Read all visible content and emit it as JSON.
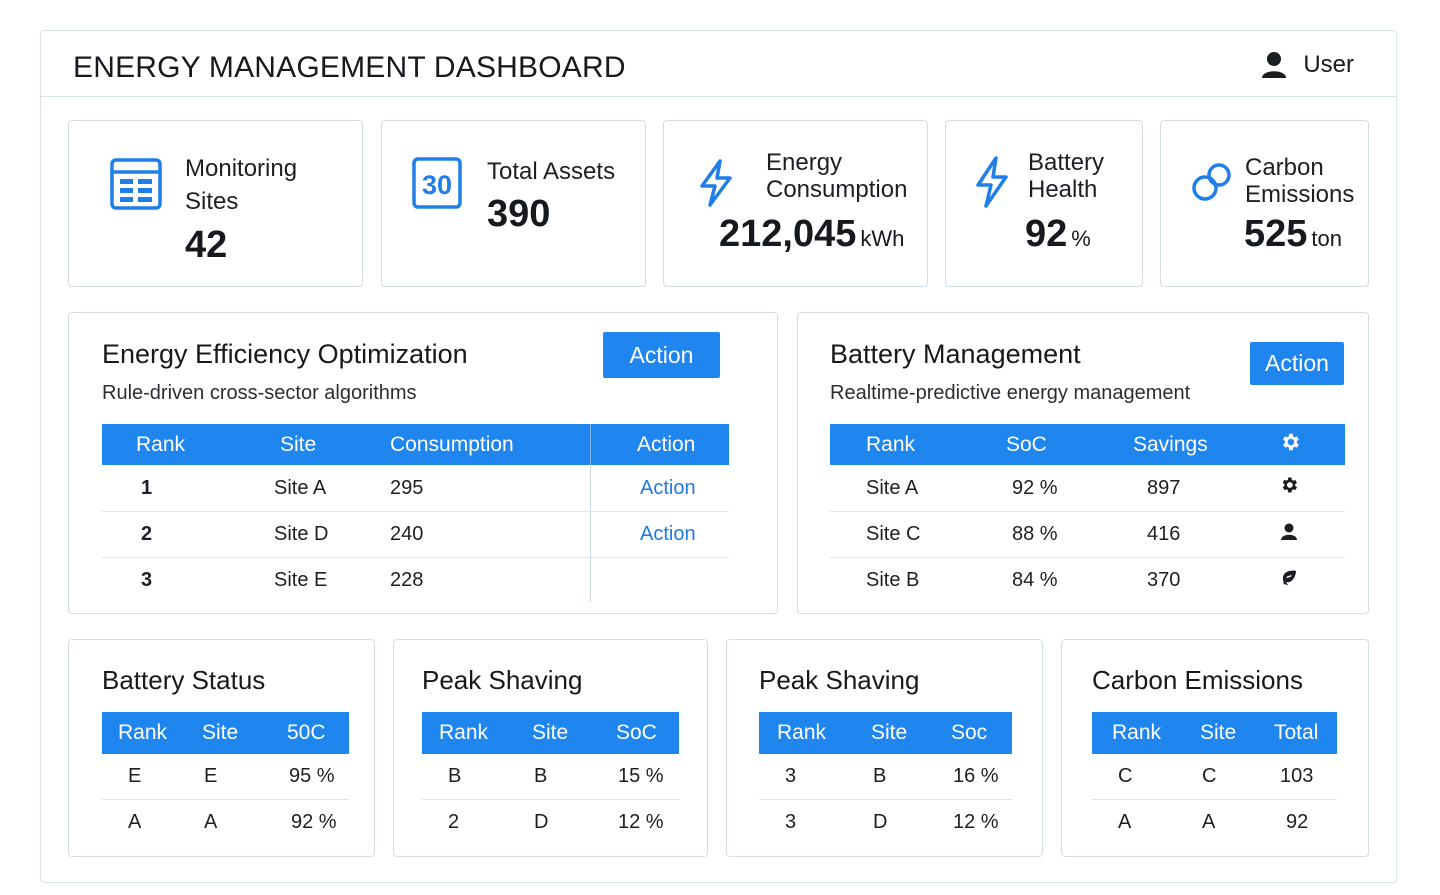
{
  "header": {
    "title": "ENERGY MANAGEMENT DASHBOARD",
    "user_label": "User"
  },
  "kpis": [
    {
      "label_line1": "Monitoring",
      "label_line2": "Sites",
      "value": "42",
      "unit": "",
      "icon": "grid-list-icon"
    },
    {
      "label_line1": "Total Assets",
      "label_line2": "",
      "value": "390",
      "unit": "",
      "icon": "calendar-30-icon",
      "icon_text": "30"
    },
    {
      "label_line1": "Energy",
      "label_line2": "Consumption",
      "value": "212,045",
      "unit": "kWh",
      "icon": "lightning-icon"
    },
    {
      "label_line1": "Battery",
      "label_line2": "Health",
      "value": "92",
      "unit": "%",
      "icon": "lightning-icon"
    },
    {
      "label_line1": "Carbon",
      "label_line2": "Emissions",
      "value": "525",
      "unit": "ton",
      "icon": "carbon-circles-icon"
    }
  ],
  "efficiency": {
    "title": "Energy Efficiency Optimization",
    "subtitle": "Rule-driven cross-sector algorithms",
    "action_label": "Action",
    "columns": [
      "Rank",
      "Site",
      "Consumption",
      "Action"
    ],
    "rows": [
      {
        "rank": "1",
        "site": "Site A",
        "consumption": "295",
        "action": "Action"
      },
      {
        "rank": "2",
        "site": "Site D",
        "consumption": "240",
        "action": "Action"
      },
      {
        "rank": "3",
        "site": "Site E",
        "consumption": "228",
        "action": ""
      }
    ]
  },
  "battery_mgmt": {
    "title": "Battery Management",
    "subtitle": "Realtime-predictive energy management",
    "action_label": "Action",
    "columns": [
      "Rank",
      "SoC",
      "Savings"
    ],
    "header_icon": "gear-icon",
    "rows": [
      {
        "site": "Site A",
        "soc": "92 %",
        "savings": "897",
        "icon": "gear-icon"
      },
      {
        "site": "Site C",
        "soc": "88 %",
        "savings": "416",
        "icon": "user-icon"
      },
      {
        "site": "Site B",
        "soc": "84 %",
        "savings": "370",
        "icon": "leaf-icon"
      }
    ]
  },
  "battery_status": {
    "title": "Battery Status",
    "columns": [
      "Rank",
      "Site",
      "50C"
    ],
    "rows": [
      [
        "E",
        "E",
        "95 %"
      ],
      [
        "A",
        "A",
        "92 %"
      ]
    ]
  },
  "peak_shaving_1": {
    "title": "Peak Shaving",
    "columns": [
      "Rank",
      "Site",
      "SoC"
    ],
    "rows": [
      [
        "B",
        "B",
        "15 %"
      ],
      [
        "2",
        "D",
        "12 %"
      ]
    ]
  },
  "peak_shaving_2": {
    "title": "Peak Shaving",
    "columns": [
      "Rank",
      "Site",
      "Soc"
    ],
    "rows": [
      [
        "3",
        "B",
        "16 %"
      ],
      [
        "3",
        "D",
        "12 %"
      ]
    ]
  },
  "carbon": {
    "title": "Carbon Emissions",
    "columns": [
      "Rank",
      "Site",
      "Total"
    ],
    "rows": [
      [
        "C",
        "C",
        "103"
      ],
      [
        "A",
        "A",
        "92"
      ]
    ]
  },
  "colors": {
    "accent": "#1f86f0",
    "link": "#1b7ae6",
    "border": "#d3dde8"
  }
}
